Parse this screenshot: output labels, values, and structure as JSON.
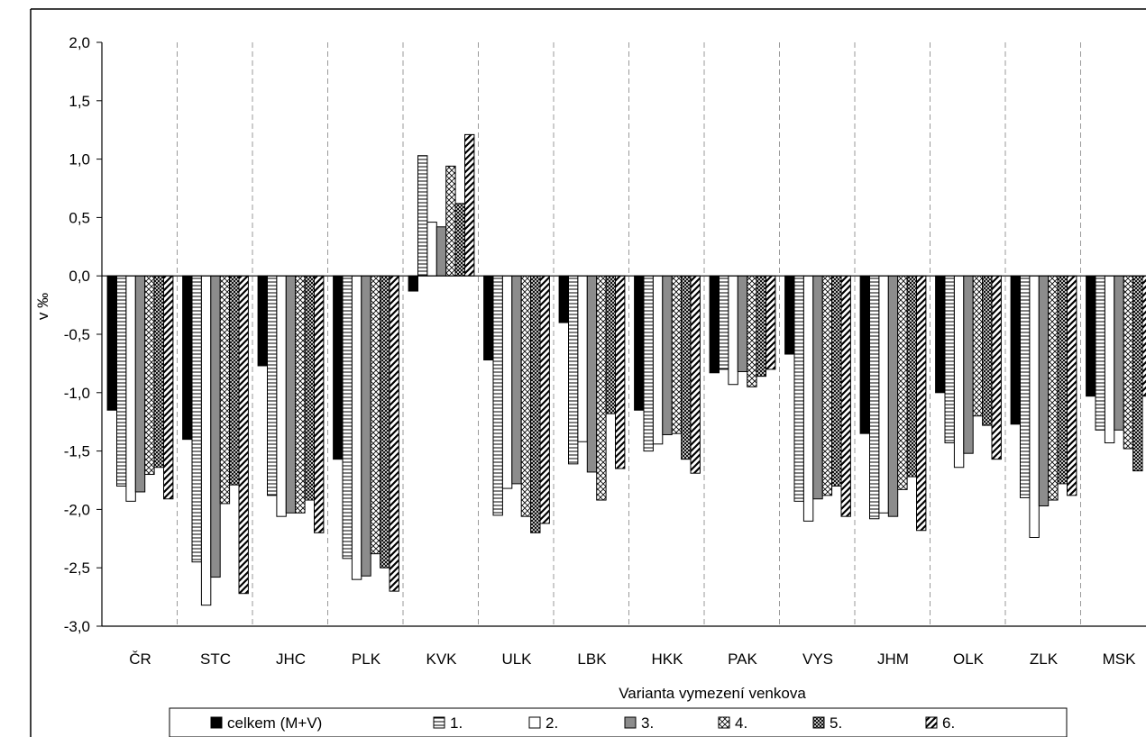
{
  "chart_data": {
    "type": "bar",
    "xlabel": "Varianta vymezení venkova",
    "ylabel": "v ‰",
    "ylim": [
      -3.0,
      2.0
    ],
    "yticks": [
      "2,0",
      "1,5",
      "1,0",
      "0,5",
      "0,0",
      "-0,5",
      "-1,0",
      "-1,5",
      "-2,0",
      "-2,5",
      "-3,0"
    ],
    "ytick_values": [
      2.0,
      1.5,
      1.0,
      0.5,
      0.0,
      -0.5,
      -1.0,
      -1.5,
      -2.0,
      -2.5,
      -3.0
    ],
    "grid": "vertical dashed between categories",
    "legend_position": "bottom",
    "categories": [
      "ČR",
      "STC",
      "JHC",
      "PLK",
      "KVK",
      "ULK",
      "LBK",
      "HKK",
      "PAK",
      "VYS",
      "JHM",
      "OLK",
      "ZLK",
      "MSK"
    ],
    "series": [
      {
        "name": "celkem (M+V)",
        "pattern": "solid-black",
        "values": [
          -1.15,
          -1.4,
          -0.77,
          -1.57,
          -0.13,
          -0.72,
          -0.4,
          -1.15,
          -0.83,
          -0.67,
          -1.35,
          -1.0,
          -1.27,
          -1.03
        ]
      },
      {
        "name": "1.",
        "pattern": "horizontal-lines",
        "values": [
          -1.8,
          -2.45,
          -1.88,
          -2.42,
          1.03,
          -2.05,
          -1.61,
          -1.5,
          -0.8,
          -1.93,
          -2.08,
          -1.43,
          -1.9,
          -1.32
        ]
      },
      {
        "name": "2.",
        "pattern": "white",
        "values": [
          -1.93,
          -2.82,
          -2.06,
          -2.6,
          0.46,
          -1.82,
          -1.42,
          -1.44,
          -0.93,
          -2.1,
          -2.03,
          -1.64,
          -2.24,
          -1.43
        ]
      },
      {
        "name": "3.",
        "pattern": "solid-gray",
        "values": [
          -1.85,
          -2.58,
          -2.03,
          -2.57,
          0.42,
          -1.78,
          -1.68,
          -1.36,
          -0.82,
          -1.91,
          -2.06,
          -1.52,
          -1.97,
          -1.32
        ]
      },
      {
        "name": "4.",
        "pattern": "crosshatch",
        "values": [
          -1.7,
          -1.95,
          -2.03,
          -2.38,
          0.94,
          -2.06,
          -1.92,
          -1.35,
          -0.95,
          -1.88,
          -1.83,
          -1.2,
          -1.92,
          -1.48
        ]
      },
      {
        "name": "5.",
        "pattern": "dense-crosshatch",
        "values": [
          -1.64,
          -1.79,
          -1.92,
          -2.5,
          0.62,
          -2.2,
          -1.18,
          -1.57,
          -0.86,
          -1.8,
          -1.72,
          -1.28,
          -1.78,
          -1.67
        ]
      },
      {
        "name": "6.",
        "pattern": "diagonal-lines",
        "values": [
          -1.91,
          -2.72,
          -2.2,
          -2.7,
          1.21,
          -2.12,
          -1.65,
          -1.69,
          -0.8,
          -2.06,
          -2.18,
          -1.57,
          -1.88,
          -1.03
        ]
      }
    ]
  }
}
